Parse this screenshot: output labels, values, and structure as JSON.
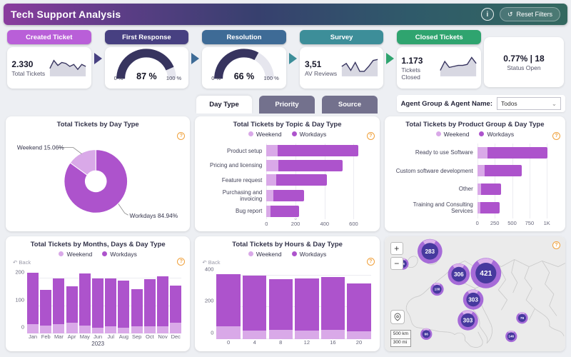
{
  "header": {
    "title": "Tech Support Analysis",
    "reset_label": "Reset Filters"
  },
  "icons": {
    "info": "i",
    "reset": "↺",
    "help": "?",
    "back": "↶",
    "chevron_down": "⌄",
    "scroll_down": "⌄"
  },
  "kpi": {
    "cards": [
      {
        "type": "spark",
        "pill": "Created Ticket",
        "pill_color": "#b95fd8",
        "value": "2.330",
        "label": "Total Tickets",
        "sparkline": [
          4,
          8,
          5.5,
          7,
          6.5,
          5,
          6,
          3.5,
          6,
          5
        ]
      },
      {
        "type": "gauge",
        "pill": "First Response",
        "pill_color": "#474081",
        "percent": 87,
        "value_label": "87 %",
        "min_label": "0 %",
        "max_label": "100 %"
      },
      {
        "type": "gauge",
        "pill": "Resolution",
        "pill_color": "#3e6b96",
        "percent": 66,
        "value_label": "66 %",
        "min_label": "0 %",
        "max_label": "100 %"
      },
      {
        "type": "spark",
        "pill": "Survey",
        "pill_color": "#3d8e99",
        "value": "3,51",
        "label": "AV Reviews",
        "sparkline": [
          5,
          6.5,
          3,
          7,
          2.5,
          2.5,
          5,
          8,
          8.5
        ]
      },
      {
        "type": "spark",
        "pill": "Closed Tickets",
        "pill_color": "#2fa46f",
        "value": "1.173",
        "label": "Tickets Closed",
        "sparkline": [
          3,
          7.5,
          4.5,
          5,
          5.5,
          5.5,
          6,
          9.5,
          6.5
        ]
      }
    ],
    "status_card": {
      "value": "0.77% | 18",
      "label": "Status Open"
    }
  },
  "tabs": [
    {
      "label": "Day Type",
      "active": true
    },
    {
      "label": "Priority",
      "active": false
    },
    {
      "label": "Source",
      "active": false
    }
  ],
  "agent_filter": {
    "label": "Agent Group & Agent Name:",
    "value": "Todos"
  },
  "legend": {
    "weekend": "Weekend",
    "workdays": "Workdays"
  },
  "colors": {
    "weekend": "#d9a9e8",
    "workdays": "#ad53cc",
    "gauge": "#37345f",
    "spark_line": "#37345f",
    "spark_fill": "#d8d8e2",
    "bubble_outer": "#a66bd8",
    "bubble_ring": "#dcb3ec",
    "bubble_inner": "#46399e",
    "help": "#f0a13c"
  },
  "chart_data": [
    {
      "id": "day_type_donut",
      "type": "pie",
      "title": "Total Tickets by Day Type",
      "slices": [
        {
          "label": "Weekend",
          "pct": 15.06,
          "display": "Weekend 15.06%"
        },
        {
          "label": "Workdays",
          "pct": 84.94,
          "display": "Workdays 84.94%"
        }
      ]
    },
    {
      "id": "topic_bars",
      "type": "bar",
      "orientation": "horizontal",
      "title": "Total Tickets by Topic & Day Type",
      "categories": [
        "Product setup",
        "Pricing and licensing",
        "Feature request",
        "Purchasing and invoicing",
        "Bug report"
      ],
      "series": [
        {
          "name": "Weekend",
          "values": [
            75,
            80,
            65,
            45,
            30
          ]
        },
        {
          "name": "Workdays",
          "values": [
            555,
            445,
            350,
            215,
            195
          ]
        }
      ],
      "xticks": [
        0,
        200,
        400,
        600
      ],
      "xtick_labels": [
        "0",
        "200",
        "400",
        "600"
      ],
      "xmax": 700
    },
    {
      "id": "product_bars",
      "type": "bar",
      "orientation": "horizontal",
      "title": "Total Tickets by Product Group & Day Type",
      "categories": [
        "Ready to use Software",
        "Custom software development",
        "Other",
        "Training and Consulting Services"
      ],
      "series": [
        {
          "name": "Weekend",
          "values": [
            150,
            100,
            55,
            45
          ]
        },
        {
          "name": "Workdays",
          "values": [
            860,
            540,
            285,
            280
          ]
        }
      ],
      "xticks": [
        0,
        250,
        500,
        750,
        1000
      ],
      "xtick_labels": [
        "0",
        "250",
        "500",
        "750",
        "1K"
      ],
      "xmax": 1100
    },
    {
      "id": "months_bars",
      "type": "bar",
      "orientation": "vertical",
      "title": "Total Tickets by Months, Days & Day Type",
      "categories": [
        "Jan",
        "Feb",
        "Mar",
        "Apr",
        "May",
        "Jun",
        "Jul",
        "Aug",
        "Sep",
        "Oct",
        "Nov",
        "Dec"
      ],
      "x_group_label": "2023",
      "back_label": "Back",
      "series": [
        {
          "name": "Weekend",
          "values": [
            35,
            30,
            33,
            40,
            28,
            22,
            25,
            20,
            25,
            25,
            25,
            38
          ]
        },
        {
          "name": "Workdays",
          "values": [
            187,
            130,
            169,
            132,
            190,
            180,
            175,
            172,
            138,
            173,
            185,
            137
          ]
        }
      ],
      "yticks": [
        0,
        100,
        200
      ],
      "ymax": 240
    },
    {
      "id": "hours_bars",
      "type": "bar",
      "orientation": "vertical",
      "title": "Total Tickets by Hours & Day Type",
      "categories": [
        "0",
        "4",
        "8",
        "12",
        "16",
        "20"
      ],
      "back_label": "Back",
      "series": [
        {
          "name": "Weekend",
          "values": [
            80,
            55,
            58,
            52,
            60,
            48
          ]
        },
        {
          "name": "Workdays",
          "values": [
            328,
            345,
            320,
            328,
            332,
            304
          ]
        }
      ],
      "yticks": [
        0,
        200,
        400
      ],
      "ymax": 440
    },
    {
      "id": "europe_map",
      "type": "map",
      "zoom_in": "+",
      "zoom_out": "−",
      "scale_km": "500 km",
      "scale_mi": "300 mi",
      "bubbles": [
        {
          "value": "283",
          "x": 25,
          "y": 13,
          "r": 17
        },
        {
          "value": "46",
          "x": 10,
          "y": 24,
          "r": 8
        },
        {
          "value": "306",
          "x": 41,
          "y": 33,
          "r": 15
        },
        {
          "value": "421",
          "x": 56,
          "y": 32,
          "r": 21
        },
        {
          "value": "138",
          "x": 29,
          "y": 46,
          "r": 9
        },
        {
          "value": "303",
          "x": 49,
          "y": 55,
          "r": 14
        },
        {
          "value": "303",
          "x": 46,
          "y": 73,
          "r": 14
        },
        {
          "value": "66",
          "x": 23,
          "y": 85,
          "r": 8
        },
        {
          "value": "79",
          "x": 76,
          "y": 71,
          "r": 8
        },
        {
          "value": "146",
          "x": 70,
          "y": 87,
          "r": 8
        }
      ]
    }
  ]
}
